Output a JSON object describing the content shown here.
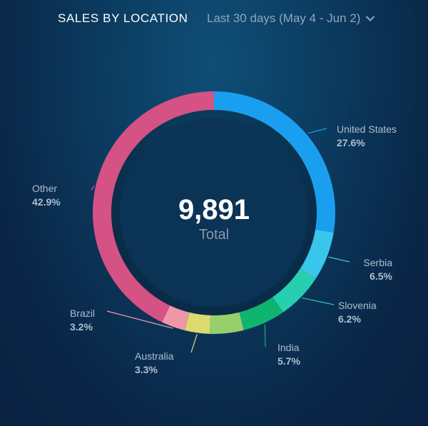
{
  "header": {
    "title": "SALES BY LOCATION",
    "range_label": "Last 30 days (May 4 - Jun 2)",
    "dropdown_icon": "chevron-down-icon"
  },
  "center": {
    "value": "9,891",
    "label": "Total"
  },
  "colors": {
    "text_muted": "#aebfd0"
  },
  "chart_data": {
    "type": "pie",
    "style": "donut",
    "slices": [
      {
        "name": "United States",
        "value": 27.6,
        "label": "27.6%",
        "color": "#1a9ff0"
      },
      {
        "name": "Serbia",
        "value": 6.5,
        "label": "6.5%",
        "color": "#38c6ea"
      },
      {
        "name": "Slovenia",
        "value": 6.2,
        "label": "6.2%",
        "color": "#26cfb0"
      },
      {
        "name": "India",
        "value": 5.7,
        "label": "5.7%",
        "color": "#0fb56f"
      },
      {
        "name": "",
        "value": 4.5,
        "label": "",
        "color": "#98cf6d"
      },
      {
        "name": "Australia",
        "value": 3.3,
        "label": "3.3%",
        "color": "#dadb6c"
      },
      {
        "name": "Brazil",
        "value": 3.2,
        "label": "3.2%",
        "color": "#ee97a8"
      },
      {
        "name": "Other",
        "value": 42.9,
        "label": "42.9%",
        "color": "#d45284"
      }
    ]
  }
}
